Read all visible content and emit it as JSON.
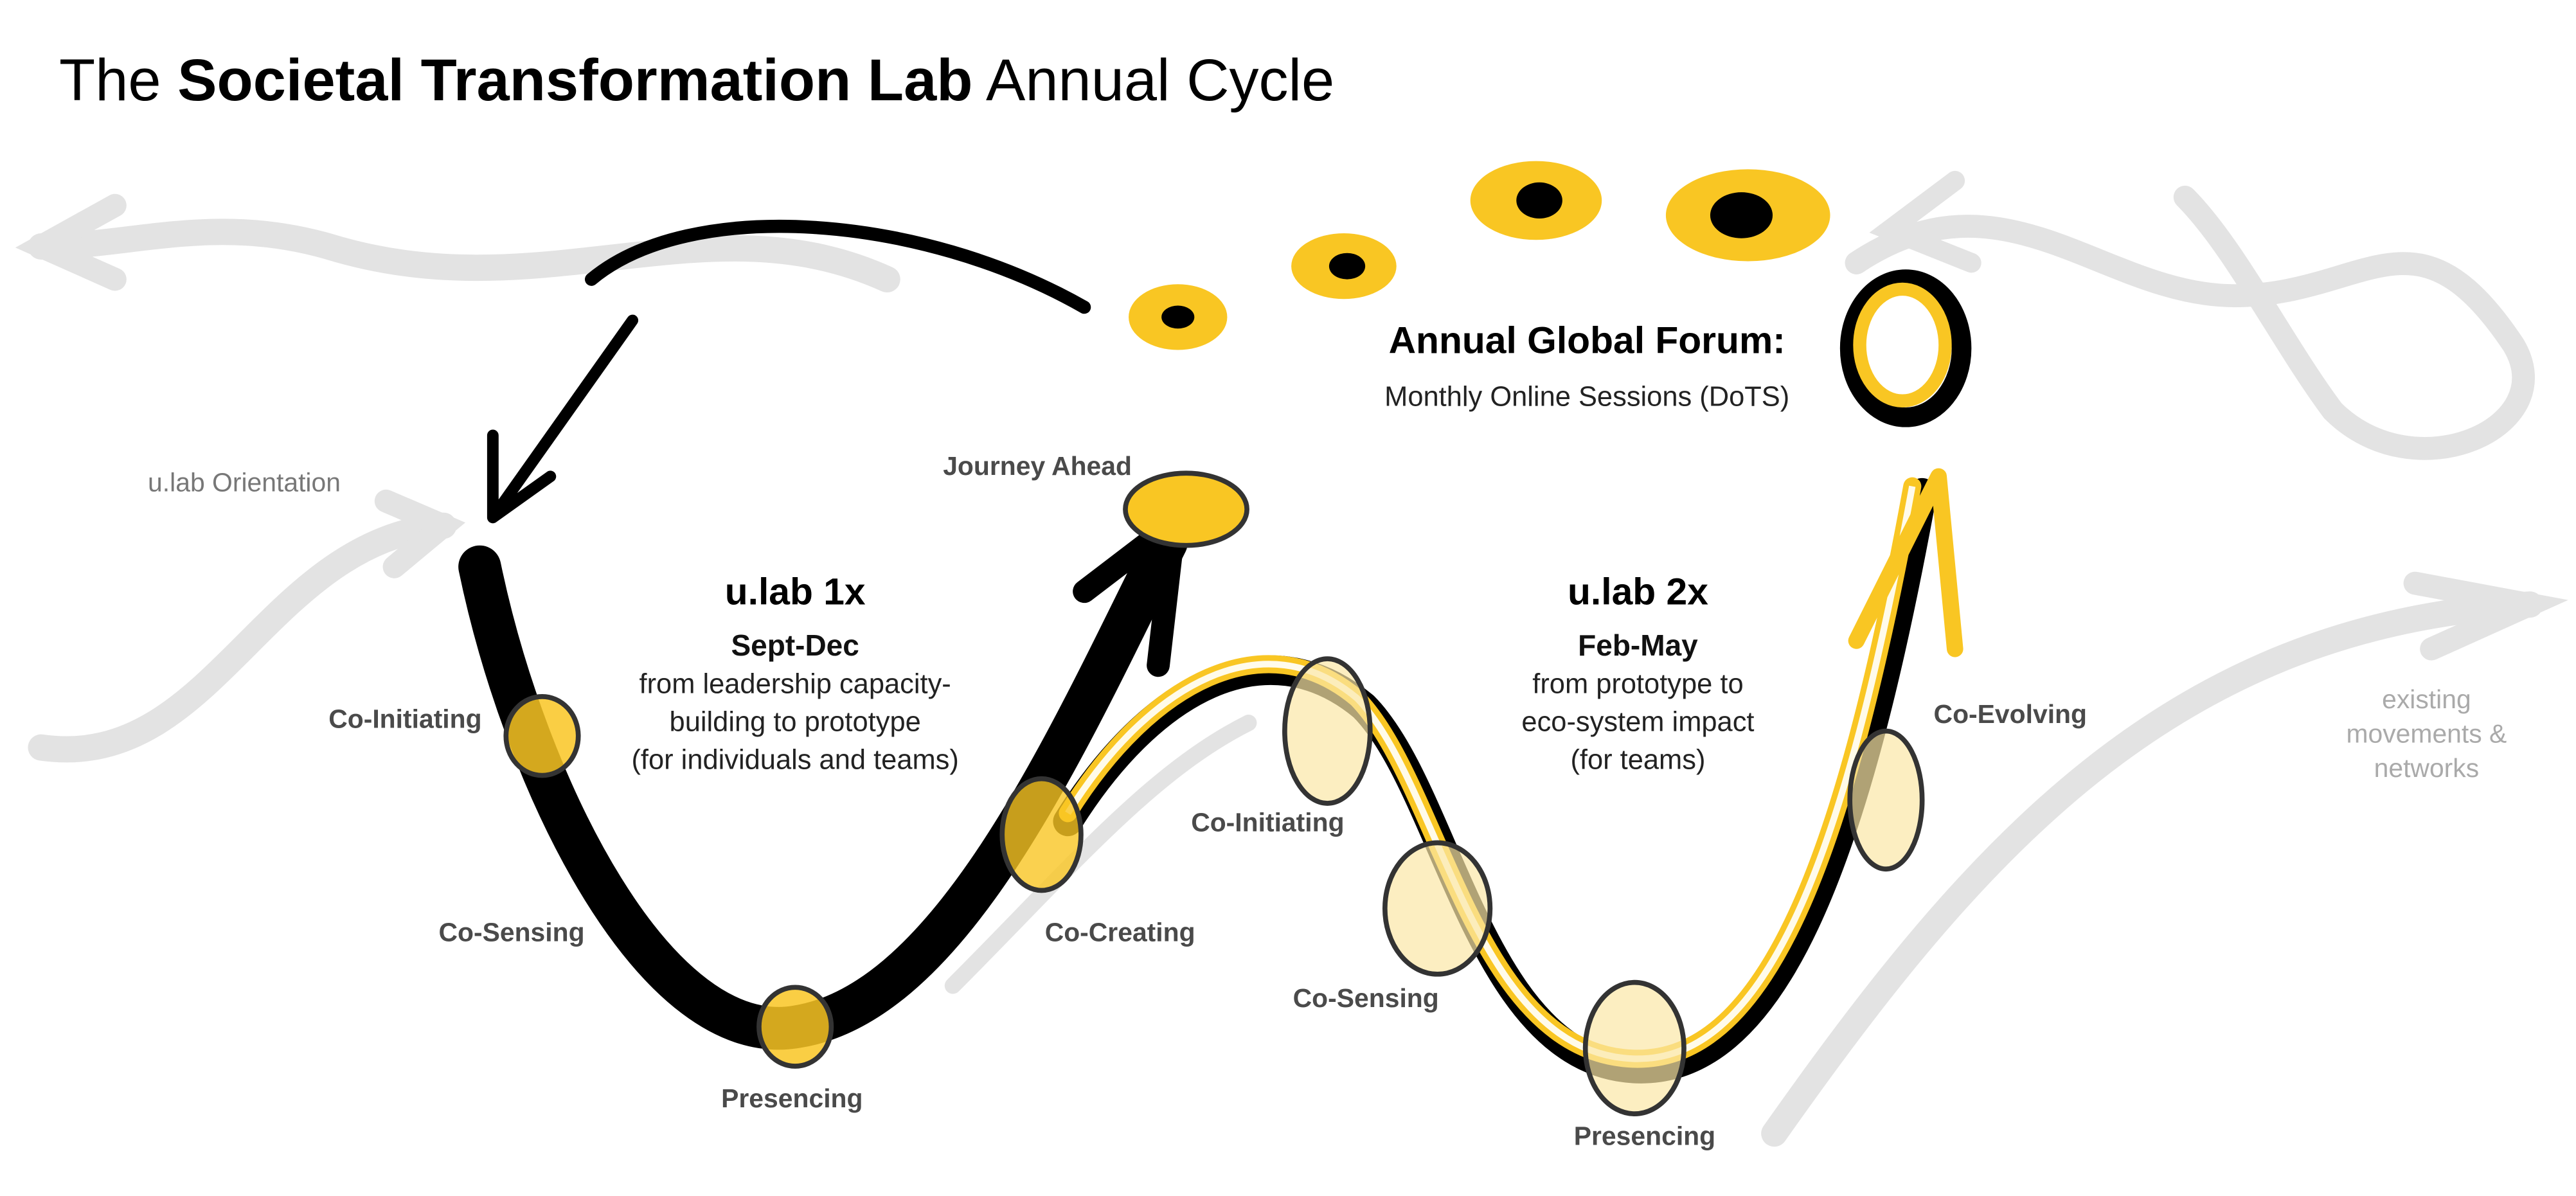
{
  "title": {
    "pre": "The ",
    "bold": "Societal Transformation Lab",
    "post": " Annual Cycle"
  },
  "colors": {
    "accent": "#f9c623",
    "ink": "#000000",
    "background_arrows": "#e0e0e0"
  },
  "orientation": "u.lab Orientation",
  "journey_ahead": "Journey Ahead",
  "forum": {
    "title": "Annual Global Forum:",
    "subtitle": "Monthly Online Sessions (DoTS)"
  },
  "ulab1": {
    "title": "u.lab 1x",
    "dates": "Sept-Dec",
    "lines": [
      "from leadership capacity-",
      "building to prototype",
      "(for individuals and teams)"
    ],
    "stages": [
      "Co-Initiating",
      "Co-Sensing",
      "Presencing",
      "Co-Creating"
    ]
  },
  "ulab2": {
    "title": "u.lab 2x",
    "dates": "Feb-May",
    "lines": [
      "from prototype to",
      "eco-system impact",
      "(for teams)"
    ],
    "stages": [
      "Co-Initiating",
      "Co-Sensing",
      "Presencing",
      "Co-Evolving"
    ]
  },
  "existing": [
    "existing",
    "movements &",
    "networks"
  ]
}
